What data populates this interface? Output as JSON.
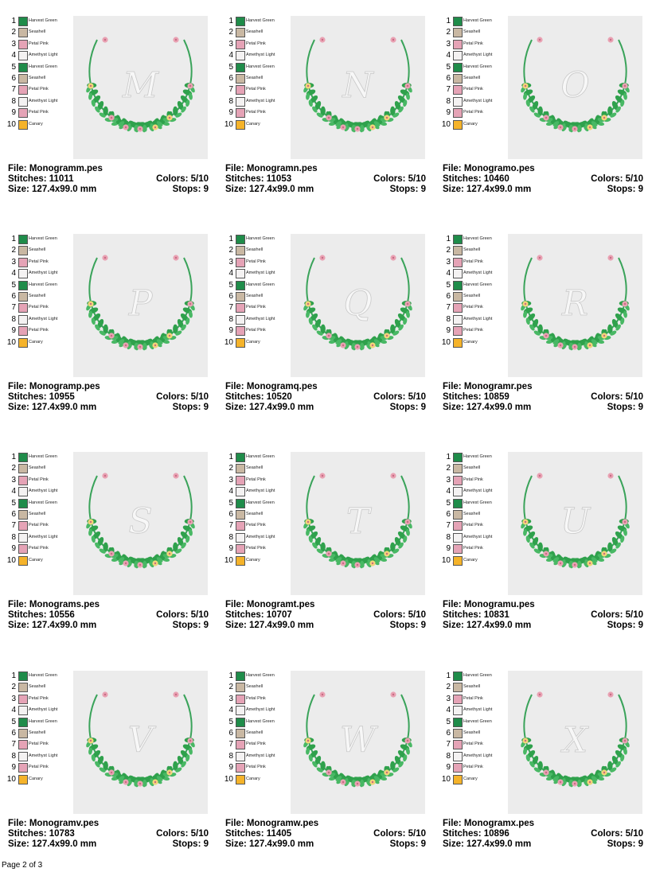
{
  "palette": [
    {
      "num": "1",
      "name": "Harvest Green",
      "color": "#1f8c4a"
    },
    {
      "num": "2",
      "name": "Seashell",
      "color": "#c9b8a3"
    },
    {
      "num": "3",
      "name": "Petal Pink",
      "color": "#e5a3b6"
    },
    {
      "num": "4",
      "name": "Amethyst Light",
      "color": "#f4f2f2"
    },
    {
      "num": "5",
      "name": "Harvest Green",
      "color": "#1f8c4a"
    },
    {
      "num": "6",
      "name": "Seashell",
      "color": "#c9b8a3"
    },
    {
      "num": "7",
      "name": "Petal Pink",
      "color": "#e5a3b6"
    },
    {
      "num": "8",
      "name": "Amethyst Light",
      "color": "#f4f2f2"
    },
    {
      "num": "9",
      "name": "Petal Pink",
      "color": "#e5a3b6"
    },
    {
      "num": "10",
      "name": "Canary",
      "color": "#f5b32a"
    }
  ],
  "designs": [
    {
      "letter": "M",
      "file": "File: Monogramm.pes",
      "stitches": "Stitches: 11011",
      "size": "Size: 127.4x99.0 mm",
      "colors": "Colors: 5/10",
      "stops": "Stops: 9"
    },
    {
      "letter": "N",
      "file": "File: Monogramn.pes",
      "stitches": "Stitches: 11053",
      "size": "Size: 127.4x99.0 mm",
      "colors": "Colors: 5/10",
      "stops": "Stops: 9"
    },
    {
      "letter": "O",
      "file": "File: Monogramo.pes",
      "stitches": "Stitches: 10460",
      "size": "Size: 127.4x99.0 mm",
      "colors": "Colors: 5/10",
      "stops": "Stops: 9"
    },
    {
      "letter": "P",
      "file": "File: Monogramp.pes",
      "stitches": "Stitches: 10955",
      "size": "Size: 127.4x99.0 mm",
      "colors": "Colors: 5/10",
      "stops": "Stops: 9"
    },
    {
      "letter": "Q",
      "file": "File: Monogramq.pes",
      "stitches": "Stitches: 10520",
      "size": "Size: 127.4x99.0 mm",
      "colors": "Colors: 5/10",
      "stops": "Stops: 9"
    },
    {
      "letter": "R",
      "file": "File: Monogramr.pes",
      "stitches": "Stitches: 10859",
      "size": "Size: 127.4x99.0 mm",
      "colors": "Colors: 5/10",
      "stops": "Stops: 9"
    },
    {
      "letter": "S",
      "file": "File: Monograms.pes",
      "stitches": "Stitches: 10556",
      "size": "Size: 127.4x99.0 mm",
      "colors": "Colors: 5/10",
      "stops": "Stops: 9"
    },
    {
      "letter": "T",
      "file": "File: Monogramt.pes",
      "stitches": "Stitches: 10707",
      "size": "Size: 127.4x99.0 mm",
      "colors": "Colors: 5/10",
      "stops": "Stops: 9"
    },
    {
      "letter": "U",
      "file": "File: Monogramu.pes",
      "stitches": "Stitches: 10831",
      "size": "Size: 127.4x99.0 mm",
      "colors": "Colors: 5/10",
      "stops": "Stops: 9"
    },
    {
      "letter": "V",
      "file": "File: Monogramv.pes",
      "stitches": "Stitches: 10783",
      "size": "Size: 127.4x99.0 mm",
      "colors": "Colors: 5/10",
      "stops": "Stops: 9"
    },
    {
      "letter": "W",
      "file": "File: Monogramw.pes",
      "stitches": "Stitches: 11405",
      "size": "Size: 127.4x99.0 mm",
      "colors": "Colors: 5/10",
      "stops": "Stops: 9"
    },
    {
      "letter": "X",
      "file": "File: Monogramx.pes",
      "stitches": "Stitches: 10896",
      "size": "Size: 127.4x99.0 mm",
      "colors": "Colors: 5/10",
      "stops": "Stops: 9"
    }
  ],
  "footer": {
    "page": "Page 2 of 3"
  }
}
